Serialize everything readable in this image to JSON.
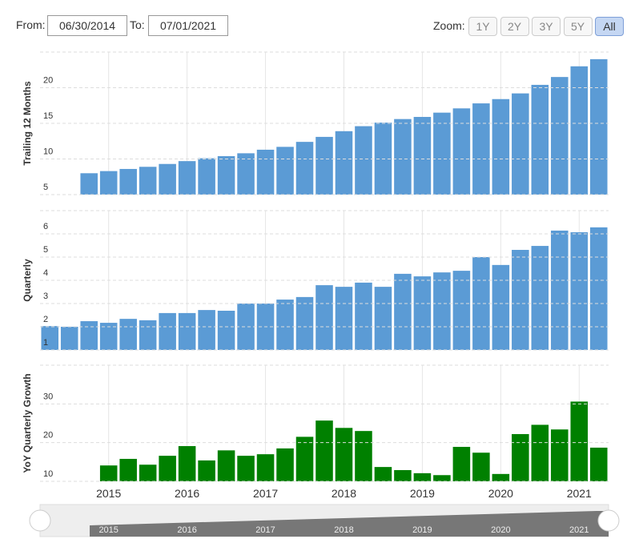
{
  "controls": {
    "from_label": "From:",
    "from": "06/30/2014",
    "to_label": "To:",
    "to": "07/01/2021",
    "zoom_label": "Zoom:",
    "zoom_buttons": [
      "1Y",
      "2Y",
      "3Y",
      "5Y",
      "All"
    ],
    "active_zoom": 4
  },
  "chart_data": [
    {
      "type": "bar",
      "y_label": "Trailing 12 Months",
      "color": "#5b9bd5",
      "grid": true,
      "categories": [
        null,
        null,
        null,
        null,
        null,
        null,
        null,
        null,
        null,
        null,
        null,
        null,
        null,
        null,
        null,
        null,
        null,
        null,
        null,
        null,
        null,
        null,
        null,
        null,
        null,
        null,
        null,
        null,
        null
      ],
      "values": [
        null,
        null,
        8.0,
        8.3,
        8.6,
        8.9,
        9.3,
        9.7,
        10.1,
        10.4,
        10.8,
        11.3,
        11.7,
        12.4,
        13.1,
        13.9,
        14.6,
        15.1,
        15.6,
        15.9,
        16.5,
        17.1,
        17.8,
        18.4,
        19.2,
        20.4,
        21.5,
        23.0,
        24.0
      ],
      "ylim": [
        5,
        25
      ],
      "yticks": [
        5,
        10,
        15,
        20
      ]
    },
    {
      "type": "bar",
      "y_label": "Quarterly",
      "color": "#5b9bd5",
      "grid": true,
      "categories": [
        null,
        null,
        null,
        null,
        null,
        null,
        null,
        null,
        null,
        null,
        null,
        null,
        null,
        null,
        null,
        null,
        null,
        null,
        null,
        null,
        null,
        null,
        null,
        null,
        null,
        null,
        null,
        null,
        null
      ],
      "values": [
        2.03,
        2.0,
        2.24,
        2.17,
        2.34,
        2.28,
        2.59,
        2.59,
        2.72,
        2.69,
        3.0,
        3.0,
        3.17,
        3.28,
        3.79,
        3.72,
        3.9,
        3.72,
        4.28,
        4.17,
        4.34,
        4.41,
        5.0,
        4.66,
        5.31,
        5.48,
        6.14,
        6.07,
        6.28
      ],
      "ylim": [
        1,
        7
      ],
      "yticks": [
        1,
        2,
        3,
        4,
        5,
        6
      ]
    },
    {
      "type": "bar",
      "y_label": "YoY Quarterly Growth",
      "color": "#008000",
      "grid": true,
      "categories": [
        null,
        null,
        null,
        null,
        null,
        null,
        null,
        null,
        null,
        null,
        null,
        null,
        null,
        null,
        null,
        null,
        null,
        null,
        null,
        null,
        null,
        null,
        null,
        null,
        null,
        null,
        null,
        null,
        null
      ],
      "values": [
        null,
        null,
        null,
        14.1,
        15.8,
        14.3,
        16.6,
        19.1,
        15.4,
        18.0,
        16.6,
        17.0,
        18.5,
        21.5,
        25.7,
        23.8,
        23.0,
        13.7,
        12.9,
        12.1,
        11.6,
        18.9,
        17.4,
        11.9,
        22.2,
        24.6,
        23.4,
        30.6,
        18.7
      ],
      "ylim": [
        10,
        40
      ],
      "yticks": [
        10,
        20,
        30
      ],
      "xticks": [
        {
          "value": 3,
          "label": "2015"
        },
        {
          "value": 7,
          "label": "2016"
        },
        {
          "value": 11,
          "label": "2017"
        },
        {
          "value": 15,
          "label": "2018"
        },
        {
          "value": 19,
          "label": "2019"
        },
        {
          "value": 23,
          "label": "2020"
        },
        {
          "value": 27,
          "label": "2021"
        }
      ]
    }
  ]
}
